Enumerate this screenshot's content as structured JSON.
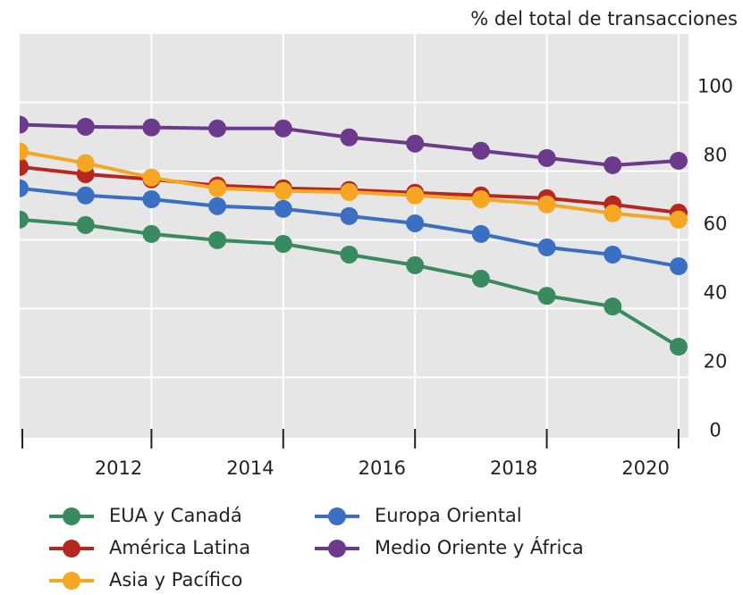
{
  "chart_data": {
    "type": "line",
    "y_label": "% del total de transacciones",
    "x": [
      2010,
      2011,
      2012,
      2013,
      2014,
      2015,
      2016,
      2017,
      2018,
      2019,
      2020
    ],
    "xlim": [
      2010,
      2020.15
    ],
    "xticks": [
      2012,
      2014,
      2016,
      2018,
      2020
    ],
    "ylim": [
      -2,
      115.5
    ],
    "yticks": [
      0,
      20,
      40,
      60,
      80,
      100
    ],
    "grid": true,
    "legend": "bottom",
    "series": [
      {
        "name": "EUA y Canadá",
        "color": "#3a8a5f",
        "values": [
          61.5,
          59.9,
          57.3,
          55.5,
          54.4,
          51.3,
          48.2,
          44.3,
          39.3,
          36.2,
          24.5
        ]
      },
      {
        "name": "América Latina",
        "color": "#b5271f",
        "values": [
          76.8,
          74.7,
          73.2,
          71.4,
          70.6,
          70.1,
          69.3,
          68.5,
          67.7,
          65.9,
          63.5
        ]
      },
      {
        "name": "Asia y Pacífico",
        "color": "#f5a623",
        "values": [
          81.3,
          77.9,
          73.7,
          70.6,
          69.8,
          69.5,
          68.5,
          67.4,
          65.9,
          63.3,
          61.5
        ]
      },
      {
        "name": "Europa Oriental",
        "color": "#3a6fc4",
        "values": [
          70.6,
          68.5,
          67.4,
          65.4,
          64.6,
          62.5,
          60.4,
          57.3,
          53.4,
          51.3,
          47.9
        ]
      },
      {
        "name": "Medio Oriente y África",
        "color": "#6b3a8c",
        "values": [
          89.1,
          88.5,
          88.3,
          88.0,
          88.0,
          85.4,
          83.6,
          81.5,
          79.4,
          77.3,
          78.6
        ]
      }
    ]
  }
}
